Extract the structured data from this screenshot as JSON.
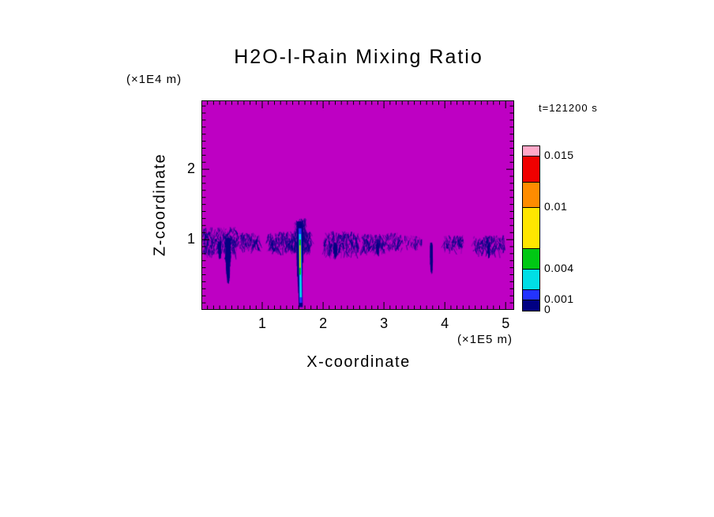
{
  "page": {
    "background_color": "#FFFFFF"
  },
  "chart_data": {
    "type": "heatmap",
    "title": "H2O-l-Rain Mixing Ratio",
    "timestamp_label": "t=121200 s",
    "xlabel": "X-coordinate",
    "ylabel": "Z-coordinate",
    "x_unit_label": "(×1E5 m)",
    "y_unit_label": "(×1E4 m)",
    "xlim": [
      0,
      5.14
    ],
    "ylim": [
      0,
      2.98
    ],
    "x_major_ticks": [
      1,
      2,
      3,
      4,
      5
    ],
    "y_major_ticks": [
      1,
      2
    ],
    "x_minor_step": 0.1,
    "y_minor_step": 0.1,
    "grid": false,
    "background_value_color": "#BE00C3",
    "rain_color": "#000082",
    "colorbar": {
      "min": 0,
      "max": 0.016,
      "levels": [
        0,
        0.001,
        0.002,
        0.004,
        0.006,
        0.01,
        0.0125,
        0.015,
        0.016
      ],
      "colors": [
        "#000082",
        "#2333FF",
        "#00DEE6",
        "#00C814",
        "#FFE600",
        "#FF8C00",
        "#F00000",
        "#FFA8C8"
      ],
      "tick_labels": [
        {
          "value": 0.015,
          "label": "0.015"
        },
        {
          "value": 0.01,
          "label": "0.01"
        },
        {
          "value": 0.004,
          "label": "0.004"
        },
        {
          "value": 0.001,
          "label": "0.001"
        },
        {
          "value": 0,
          "label": "0"
        }
      ]
    },
    "features": {
      "bands": [
        {
          "x0": 0.03,
          "x1": 0.58,
          "z0": 0.82,
          "z1": 1.18,
          "strokes": 300
        },
        {
          "x0": 0.6,
          "x1": 0.95,
          "z0": 0.88,
          "z1": 1.1,
          "strokes": 110
        },
        {
          "x0": 1.1,
          "x1": 1.47,
          "z0": 0.86,
          "z1": 1.12,
          "strokes": 150
        },
        {
          "x0": 1.48,
          "x1": 1.8,
          "z0": 0.85,
          "z1": 1.12,
          "strokes": 200
        },
        {
          "x0": 1.54,
          "x1": 1.72,
          "z0": 1.05,
          "z1": 1.3,
          "strokes": 90
        },
        {
          "x0": 2.02,
          "x1": 2.58,
          "z0": 0.82,
          "z1": 1.12,
          "strokes": 230
        },
        {
          "x0": 2.64,
          "x1": 3.02,
          "z0": 0.86,
          "z1": 1.08,
          "strokes": 130
        },
        {
          "x0": 3.04,
          "x1": 3.3,
          "z0": 0.88,
          "z1": 1.1,
          "strokes": 70
        },
        {
          "x0": 3.34,
          "x1": 3.62,
          "z0": 0.92,
          "z1": 1.06,
          "strokes": 35
        },
        {
          "x0": 3.98,
          "x1": 4.3,
          "z0": 0.88,
          "z1": 1.06,
          "strokes": 80
        },
        {
          "x0": 4.48,
          "x1": 4.98,
          "z0": 0.84,
          "z1": 1.06,
          "strokes": 160
        }
      ],
      "plumes": [
        {
          "x": 0.44,
          "ztop": 1.02,
          "zbot": 0.36,
          "w": 0.045,
          "strokes": 140
        },
        {
          "x": 0.3,
          "ztop": 0.98,
          "zbot": 0.7,
          "w": 0.04,
          "strokes": 30
        },
        {
          "x": 2.2,
          "ztop": 0.96,
          "zbot": 0.7,
          "w": 0.04,
          "strokes": 30
        },
        {
          "x": 2.9,
          "ztop": 0.95,
          "zbot": 0.75,
          "w": 0.03,
          "strokes": 20
        },
        {
          "x": 3.78,
          "ztop": 0.96,
          "zbot": 0.5,
          "w": 0.022,
          "strokes": 40
        },
        {
          "x": 4.72,
          "ztop": 0.94,
          "zbot": 0.72,
          "w": 0.03,
          "strokes": 22
        }
      ],
      "shaft": {
        "x": 1.62,
        "w": 0.055,
        "strokes": 160,
        "ztop": 1.26,
        "zbot": 0.04,
        "layers": [
          {
            "color": "#000082",
            "width": 5,
            "z0": 0.04,
            "z1": 1.22,
            "dx": 1
          },
          {
            "color": "#2333FF",
            "width": 3.5,
            "z0": 0.1,
            "z1": 1.16,
            "dx": 1
          },
          {
            "color": "#00DEE6",
            "width": 2.6,
            "z0": 0.18,
            "z1": 1.08,
            "dx": 1
          },
          {
            "color": "#00C814",
            "width": 2.2,
            "z0": 0.5,
            "z1": 1.0,
            "dx": 0
          },
          {
            "color": "#FFE600",
            "width": 1.4,
            "z0": 0.6,
            "z1": 0.92,
            "dx": 0
          }
        ]
      }
    }
  }
}
